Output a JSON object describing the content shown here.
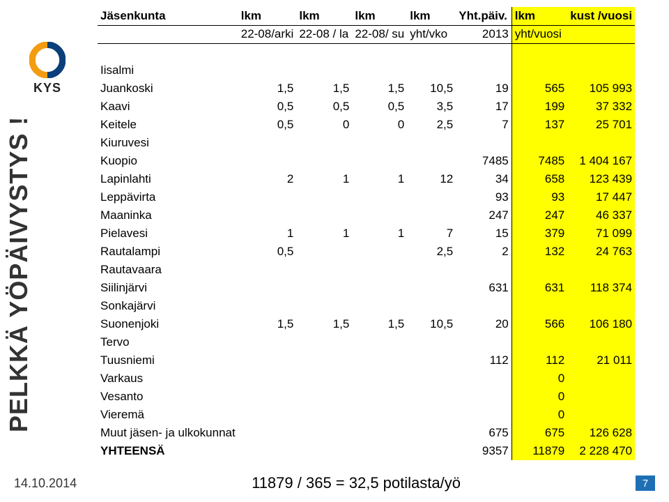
{
  "sidebar_vertical": "PELKKÄ YÖPÄIVYSTYS !",
  "kys": "KYS",
  "header1": {
    "name": "Jäsenkunta",
    "c1": "lkm",
    "c2": "lkm",
    "c3": "lkm",
    "c4": "lkm",
    "c5": "Yht.päiv.",
    "c6": "lkm",
    "c7": "kust /vuosi"
  },
  "header2": {
    "c1": "22-08/arki",
    "c2": "22-08 / la",
    "c3": "22-08/ su",
    "c4": "yht/vko",
    "c5": "2013",
    "c6": "yht/vuosi",
    "c7": ""
  },
  "rows": [
    {
      "name": "Iisalmi"
    },
    {
      "name": "Juankoski",
      "c1": "1,5",
      "c2": "1,5",
      "c3": "1,5",
      "c4": "10,5",
      "c5": "19",
      "c6": "565",
      "c7": "105 993"
    },
    {
      "name": "Kaavi",
      "c1": "0,5",
      "c2": "0,5",
      "c3": "0,5",
      "c4": "3,5",
      "c5": "17",
      "c6": "199",
      "c7": "37 332"
    },
    {
      "name": "Keitele",
      "c1": "0,5",
      "c2": "0",
      "c3": "0",
      "c4": "2,5",
      "c5": "7",
      "c6": "137",
      "c7": "25 701"
    },
    {
      "name": "Kiuruvesi"
    },
    {
      "name": "Kuopio",
      "c5": "7485",
      "c6": "7485",
      "c7": "1 404 167"
    },
    {
      "name": "Lapinlahti",
      "c1": "2",
      "c2": "1",
      "c3": "1",
      "c4": "12",
      "c5": "34",
      "c6": "658",
      "c7": "123 439"
    },
    {
      "name": "Leppävirta",
      "c5": "93",
      "c6": "93",
      "c7": "17 447"
    },
    {
      "name": "Maaninka",
      "c5": "247",
      "c6": "247",
      "c7": "46 337"
    },
    {
      "name": "Pielavesi",
      "c1": "1",
      "c2": "1",
      "c3": "1",
      "c4": "7",
      "c5": "15",
      "c6": "379",
      "c7": "71 099"
    },
    {
      "name": "Rautalampi",
      "c1": "0,5",
      "c4": "2,5",
      "c5": "2",
      "c6": "132",
      "c7": "24 763"
    },
    {
      "name": "Rautavaara"
    },
    {
      "name": "Siilinjärvi",
      "c5": "631",
      "c6": "631",
      "c7": "118 374"
    },
    {
      "name": "Sonkajärvi"
    },
    {
      "name": "Suonenjoki",
      "c1": "1,5",
      "c2": "1,5",
      "c3": "1,5",
      "c4": "10,5",
      "c5": "20",
      "c6": "566",
      "c7": "106 180"
    },
    {
      "name": "Tervo"
    },
    {
      "name": "Tuusniemi",
      "c5": "112",
      "c6": "112",
      "c7": "21 011"
    },
    {
      "name": "Varkaus",
      "c6": "0"
    },
    {
      "name": "Vesanto",
      "c6": "0"
    },
    {
      "name": "Vieremä",
      "c6": "0"
    },
    {
      "name": "Muut jäsen- ja ulkokunnat",
      "c5": "675",
      "c6": "675",
      "c7": "126 628"
    },
    {
      "name": "YHTEENSÄ",
      "bold": true,
      "c5": "9357",
      "c6": "11879",
      "c7": "2 228 470"
    }
  ],
  "footer": {
    "date": "14.10.2014",
    "calc": "11879 / 365 = 32,5 potilasta/yö",
    "page": "7"
  },
  "colors": {
    "highlight": "#ffff00",
    "pagebg": "#1f6fb5"
  }
}
